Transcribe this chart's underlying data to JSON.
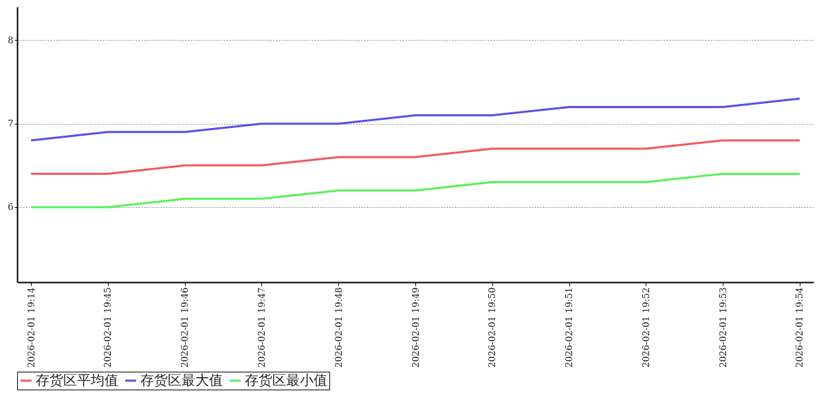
{
  "chart_data": {
    "type": "line",
    "categories": [
      "2026-02-01 19:14",
      "2026-02-01 19:45",
      "2026-02-01 19:46",
      "2026-02-01 19:47",
      "2026-02-01 19:48",
      "2026-02-01 19:49",
      "2026-02-01 19:50",
      "2026-02-01 19:51",
      "2026-02-01 19:52",
      "2026-02-01 19:53",
      "2026-02-01 19:54"
    ],
    "series": [
      {
        "name": "存货区平均值",
        "color": "#f05a5a",
        "values": [
          6.4,
          6.4,
          6.5,
          6.5,
          6.6,
          6.6,
          6.7,
          6.7,
          6.7,
          6.8,
          6.8
        ]
      },
      {
        "name": "存货区最大值",
        "color": "#5a50e6",
        "values": [
          6.8,
          6.9,
          6.9,
          7.0,
          7.0,
          7.1,
          7.1,
          7.2,
          7.2,
          7.2,
          7.3
        ]
      },
      {
        "name": "存货区最小值",
        "color": "#5af05a",
        "values": [
          6.0,
          6.0,
          6.1,
          6.1,
          6.2,
          6.2,
          6.3,
          6.3,
          6.3,
          6.4,
          6.4
        ]
      }
    ],
    "ylim": [
      5.1,
      8.4
    ],
    "yticks": [
      6,
      7,
      8
    ],
    "grid": "y",
    "legend": "bottom",
    "marker": "none",
    "line_style": "solid"
  }
}
